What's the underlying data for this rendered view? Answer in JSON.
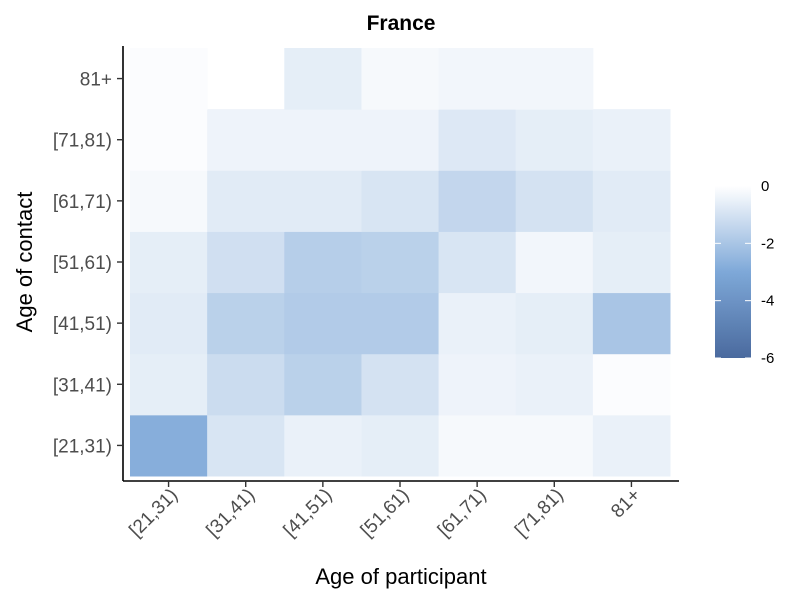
{
  "chart_data": {
    "type": "heatmap",
    "title": "France",
    "xlabel": "Age of participant",
    "ylabel": "Age of contact",
    "x_categories": [
      "[21,31)",
      "[31,41)",
      "[41,51)",
      "[51,61)",
      "[61,71)",
      "[71,81)",
      "81+"
    ],
    "y_categories": [
      "[21,31)",
      "[31,41)",
      "[41,51)",
      "[51,61)",
      "[61,71)",
      "[71,81)",
      "81+"
    ],
    "values": [
      [
        -2.8,
        -0.9,
        -0.5,
        -0.6,
        -0.2,
        -0.2,
        -0.5
      ],
      [
        -0.6,
        -1.2,
        -1.6,
        -1.0,
        -0.4,
        -0.5,
        -0.1
      ],
      [
        -0.7,
        -1.6,
        -1.8,
        -1.8,
        -0.5,
        -0.6,
        -2.0
      ],
      [
        -0.6,
        -1.1,
        -1.7,
        -1.6,
        -0.9,
        -0.3,
        -0.6
      ],
      [
        -0.2,
        -0.7,
        -0.7,
        -0.9,
        -1.4,
        -1.0,
        -0.7
      ],
      [
        -0.1,
        -0.4,
        -0.4,
        -0.4,
        -0.8,
        -0.6,
        -0.5
      ],
      [
        -0.1,
        null,
        -0.6,
        -0.2,
        -0.3,
        -0.3,
        null
      ]
    ],
    "color_scale": {
      "min": -6,
      "max": 0,
      "low_color": "#4a6a9e",
      "mid_color": "#7ea8d8",
      "high_color": "#ffffff",
      "ticks": [
        0,
        -2,
        -4,
        -6
      ]
    },
    "legend_position": "right",
    "grid": false
  }
}
